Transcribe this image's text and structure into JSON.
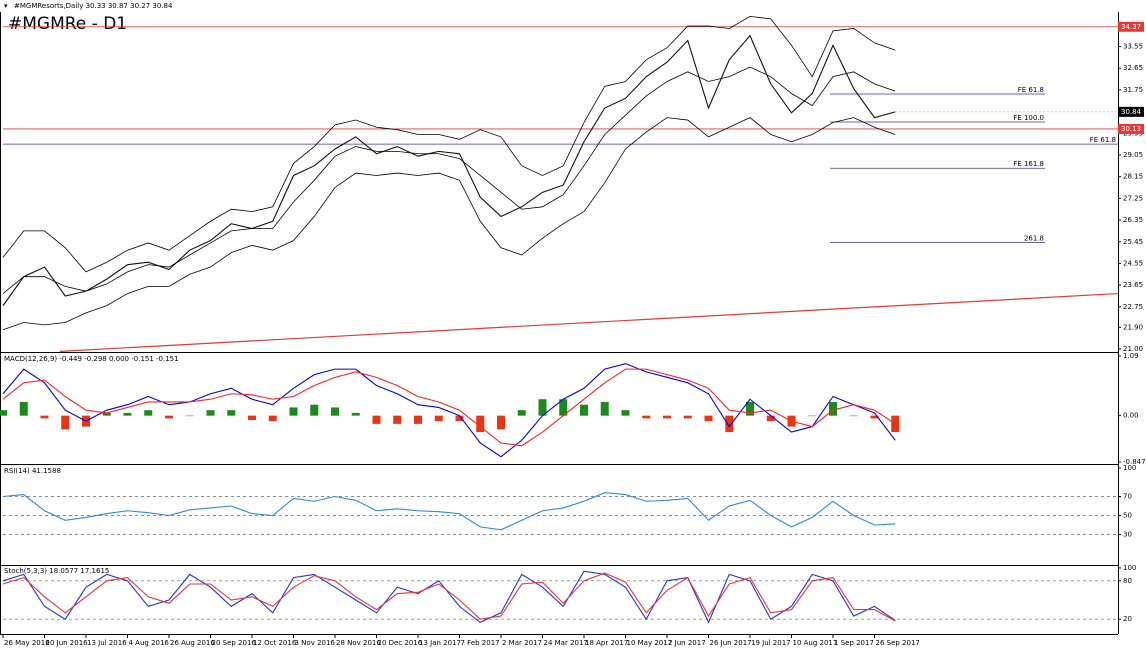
{
  "chart_data": [
    {
      "type": "line",
      "header": "#MGMResorts,Daily  30.33 30.87 30.27 30.84",
      "title": "#MGMRe - D1",
      "categories": [
        "26 May 2016",
        null,
        "20 Jun 2016",
        null,
        "13 Jul 2016",
        null,
        "4 Aug 2016",
        null,
        "26 Aug 2016",
        null,
        "20 Sep 2016",
        null,
        "12 Oct 2016",
        null,
        "3 Nov 2016",
        null,
        "28 Nov 2016",
        null,
        "20 Dec 2016",
        null,
        "13 Jan 2017",
        null,
        "7 Feb 2017",
        null,
        "2 Mar 2017",
        null,
        "24 Mar 2017",
        null,
        "18 Apr 2017",
        null,
        "10 May 2017",
        null,
        "2 Jun 2017",
        null,
        "26 Jun 2017",
        null,
        "19 Jul 2017",
        null,
        "10 Aug 2017",
        null,
        "1 Sep 2017",
        null,
        "26 Sep 2017",
        null
      ],
      "series": [
        {
          "color": "#111111",
          "values": [
            22.8,
            24.0,
            24.4,
            23.2,
            23.4,
            23.9,
            24.5,
            24.6,
            24.3,
            25.1,
            25.5,
            26.2,
            26.0,
            26.3,
            28.2,
            28.6,
            29.3,
            29.8,
            29.1,
            29.4,
            29.0,
            29.2,
            29.1,
            27.3,
            26.5,
            26.9,
            27.5,
            27.8,
            29.6,
            31.0,
            31.4,
            32.3,
            32.9,
            33.8,
            31.0,
            33.0,
            34.0,
            32.0,
            30.8,
            31.6,
            33.6,
            31.8,
            30.6,
            30.84
          ]
        },
        {
          "color": "#000000",
          "values": [
            24.8,
            25.9,
            25.9,
            25.2,
            24.2,
            24.6,
            25.1,
            25.4,
            25.1,
            25.7,
            26.3,
            26.8,
            26.7,
            26.9,
            28.7,
            29.4,
            30.3,
            30.5,
            30.2,
            30.1,
            29.9,
            29.9,
            29.7,
            30.1,
            29.8,
            28.6,
            28.2,
            28.6,
            30.4,
            31.9,
            32.1,
            33.0,
            33.5,
            34.4,
            34.4,
            34.3,
            34.8,
            34.7,
            33.6,
            32.3,
            34.2,
            34.3,
            33.7,
            33.4
          ]
        },
        {
          "color": "#000000",
          "values": [
            23.3,
            24.0,
            24.0,
            23.6,
            23.4,
            23.7,
            24.2,
            24.5,
            24.4,
            24.9,
            25.4,
            25.9,
            26.0,
            26.0,
            27.1,
            28.0,
            29.0,
            29.4,
            29.2,
            29.2,
            29.1,
            29.1,
            28.9,
            28.2,
            27.5,
            26.8,
            26.9,
            27.4,
            28.6,
            29.9,
            30.7,
            31.5,
            32.1,
            32.5,
            32.1,
            32.3,
            32.7,
            32.3,
            31.6,
            31.1,
            32.3,
            32.5,
            32.0,
            31.7
          ]
        },
        {
          "color": "#000000",
          "values": [
            21.8,
            22.1,
            22.0,
            22.1,
            22.5,
            22.8,
            23.3,
            23.6,
            23.6,
            24.1,
            24.4,
            25.0,
            25.3,
            25.1,
            25.5,
            26.5,
            27.7,
            28.3,
            28.2,
            28.3,
            28.2,
            28.3,
            28.0,
            26.3,
            25.2,
            24.9,
            25.6,
            26.2,
            26.7,
            27.9,
            29.3,
            30.0,
            30.6,
            30.5,
            29.8,
            30.2,
            30.6,
            29.9,
            29.6,
            29.9,
            30.4,
            30.6,
            30.2,
            29.9
          ]
        }
      ],
      "ylim": [
        21.0,
        34.9
      ],
      "yticks": [
        33.55,
        32.65,
        31.75,
        29.95,
        29.05,
        28.15,
        27.25,
        26.35,
        25.45,
        24.55,
        23.65,
        22.75,
        {
          "value": 21.9,
          "label": "21.90"
        },
        {
          "value": 21.0,
          "label": "21.00"
        }
      ],
      "price_lines": [
        {
          "value": 34.37,
          "color": "#e53935"
        },
        {
          "value": 30.13,
          "color": "#e53935"
        }
      ],
      "long_level": {
        "label": "FE 61.8",
        "value": 29.5,
        "color": "#3333aa"
      },
      "fibo_levels": [
        {
          "label": "FE 61.8",
          "value": 31.58
        },
        {
          "label": "FE 100.0",
          "value": 30.42
        },
        {
          "label": "FE 161.8",
          "value": 28.5
        },
        {
          "label": "261.8",
          "value": 25.42
        }
      ],
      "fibo_color": "#3333aa",
      "trendline": {
        "color": "#e53935",
        "values": [
          20.9,
          23.3
        ]
      }
    },
    {
      "type": "macd",
      "label": "MACD(12,26,9) -0.449 -0.298 0.000 -0.151 -0.151",
      "histogram": {
        "up_color": "#1a8a1a",
        "down_color": "#ee3311",
        "values": [
          0.1,
          0.25,
          -0.05,
          -0.25,
          -0.2,
          0.05,
          0.05,
          0.1,
          -0.05,
          0,
          0.1,
          0.1,
          -0.08,
          -0.1,
          0.15,
          0.2,
          0.15,
          0.05,
          -0.15,
          -0.15,
          -0.15,
          -0.1,
          -0.1,
          -0.3,
          -0.25,
          0.1,
          0.3,
          0.3,
          0.2,
          0.25,
          0.1,
          -0.05,
          -0.05,
          -0.05,
          -0.1,
          -0.3,
          0.25,
          -0.1,
          -0.2,
          0,
          0.25,
          0,
          -0.05,
          -0.3
        ]
      },
      "series": [
        {
          "color": "#0000ee",
          "values": [
            0.4,
            0.85,
            0.6,
            0.1,
            -0.1,
            0.1,
            0.2,
            0.35,
            0.2,
            0.25,
            0.4,
            0.5,
            0.3,
            0.2,
            0.5,
            0.75,
            0.85,
            0.85,
            0.55,
            0.4,
            0.2,
            0.15,
            0.0,
            -0.5,
            -0.75,
            -0.45,
            0.0,
            0.3,
            0.5,
            0.85,
            0.95,
            0.8,
            0.7,
            0.6,
            0.4,
            -0.2,
            0.3,
            0.0,
            -0.3,
            -0.2,
            0.35,
            0.2,
            0.05,
            -0.45
          ]
        },
        {
          "color": "#ff2222",
          "values": [
            0.3,
            0.6,
            0.65,
            0.35,
            0.1,
            0.05,
            0.15,
            0.25,
            0.25,
            0.25,
            0.3,
            0.4,
            0.38,
            0.3,
            0.35,
            0.55,
            0.7,
            0.8,
            0.7,
            0.55,
            0.35,
            0.25,
            0.1,
            -0.2,
            -0.5,
            -0.55,
            -0.3,
            0.0,
            0.3,
            0.6,
            0.85,
            0.85,
            0.75,
            0.65,
            0.5,
            0.1,
            0.05,
            0.1,
            -0.1,
            -0.2,
            0.1,
            0.2,
            0.1,
            -0.15
          ]
        }
      ],
      "ylim": [
        -0.847,
        1.09
      ],
      "yticks": [
        1.09,
        {
          "value": 0,
          "label": "0.00"
        },
        -0.847
      ]
    },
    {
      "type": "line",
      "label": "RSI(14) 41.1588",
      "series": [
        {
          "color": "#2a8ad8",
          "values": [
            70,
            72,
            55,
            45,
            48,
            52,
            55,
            53,
            50,
            56,
            58,
            60,
            52,
            50,
            68,
            65,
            70,
            66,
            55,
            57,
            55,
            54,
            52,
            38,
            35,
            45,
            55,
            58,
            65,
            74,
            72,
            65,
            66,
            68,
            45,
            60,
            66,
            50,
            38,
            48,
            65,
            50,
            40,
            41.1588
          ]
        }
      ],
      "ylim": [
        0,
        100
      ],
      "yticks": [
        100,
        70,
        50,
        30
      ],
      "grid": "dashed"
    },
    {
      "type": "line",
      "label": "Stoch(5,3,3) 18.0577 17.1615",
      "series": [
        {
          "color": "#2233dd",
          "values": [
            80,
            90,
            40,
            20,
            70,
            90,
            80,
            40,
            50,
            90,
            70,
            40,
            60,
            30,
            85,
            90,
            70,
            50,
            30,
            70,
            60,
            80,
            40,
            15,
            30,
            90,
            70,
            40,
            95,
            90,
            70,
            20,
            80,
            85,
            15,
            90,
            80,
            20,
            40,
            90,
            80,
            25,
            40,
            18.0577
          ]
        },
        {
          "color": "#ee3333",
          "values": [
            75,
            85,
            55,
            30,
            55,
            80,
            85,
            55,
            45,
            75,
            75,
            50,
            55,
            40,
            70,
            88,
            80,
            55,
            35,
            60,
            62,
            75,
            50,
            20,
            25,
            75,
            78,
            45,
            80,
            92,
            78,
            30,
            65,
            85,
            25,
            75,
            85,
            30,
            35,
            80,
            85,
            35,
            35,
            17.1615
          ]
        }
      ],
      "ylim": [
        0,
        100
      ],
      "yticks": [
        100,
        80,
        20
      ],
      "grid": "dashed"
    }
  ]
}
